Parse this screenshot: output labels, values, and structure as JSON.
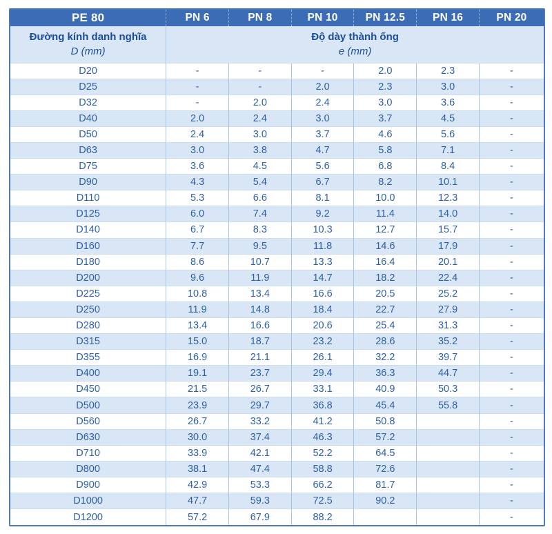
{
  "table": {
    "corner_title": "PE 80",
    "pn_headers": [
      "PN 6",
      "PN 8",
      "PN 10",
      "PN 12.5",
      "PN 16",
      "PN 20"
    ],
    "diameter_header": {
      "title": "Đường kính danh nghĩa",
      "unit": "D (mm)"
    },
    "thickness_header": {
      "title": "Độ dày thành ống",
      "unit": "e (mm)"
    },
    "rows": [
      {
        "d": "D20",
        "values": [
          "-",
          "-",
          "-",
          "2.0",
          "2.3",
          "-"
        ]
      },
      {
        "d": "D25",
        "values": [
          "-",
          "-",
          "2.0",
          "2.3",
          "3.0",
          "-"
        ]
      },
      {
        "d": "D32",
        "values": [
          "-",
          "2.0",
          "2.4",
          "3.0",
          "3.6",
          "-"
        ]
      },
      {
        "d": "D40",
        "values": [
          "2.0",
          "2.4",
          "3.0",
          "3.7",
          "4.5",
          "-"
        ]
      },
      {
        "d": "D50",
        "values": [
          "2.4",
          "3.0",
          "3.7",
          "4.6",
          "5.6",
          "-"
        ]
      },
      {
        "d": "D63",
        "values": [
          "3.0",
          "3.8",
          "4.7",
          "5.8",
          "7.1",
          "-"
        ]
      },
      {
        "d": "D75",
        "values": [
          "3.6",
          "4.5",
          "5.6",
          "6.8",
          "8.4",
          "-"
        ]
      },
      {
        "d": "D90",
        "values": [
          "4.3",
          "5.4",
          "6.7",
          "8.2",
          "10.1",
          "-"
        ]
      },
      {
        "d": "D110",
        "values": [
          "5.3",
          "6.6",
          "8.1",
          "10.0",
          "12.3",
          "-"
        ]
      },
      {
        "d": "D125",
        "values": [
          "6.0",
          "7.4",
          "9.2",
          "11.4",
          "14.0",
          "-"
        ]
      },
      {
        "d": "D140",
        "values": [
          "6.7",
          "8.3",
          "10.3",
          "12.7",
          "15.7",
          "-"
        ]
      },
      {
        "d": "D160",
        "values": [
          "7.7",
          "9.5",
          "11.8",
          "14.6",
          "17.9",
          "-"
        ]
      },
      {
        "d": "D180",
        "values": [
          "8.6",
          "10.7",
          "13.3",
          "16.4",
          "20.1",
          "-"
        ]
      },
      {
        "d": "D200",
        "values": [
          "9.6",
          "11.9",
          "14.7",
          "18.2",
          "22.4",
          "-"
        ]
      },
      {
        "d": "D225",
        "values": [
          "10.8",
          "13.4",
          "16.6",
          "20.5",
          "25.2",
          "-"
        ]
      },
      {
        "d": "D250",
        "values": [
          "11.9",
          "14.8",
          "18.4",
          "22.7",
          "27.9",
          "-"
        ]
      },
      {
        "d": "D280",
        "values": [
          "13.4",
          "16.6",
          "20.6",
          "25.4",
          "31.3",
          "-"
        ]
      },
      {
        "d": "D315",
        "values": [
          "15.0",
          "18.7",
          "23.2",
          "28.6",
          "35.2",
          "-"
        ]
      },
      {
        "d": "D355",
        "values": [
          "16.9",
          "21.1",
          "26.1",
          "32.2",
          "39.7",
          "-"
        ]
      },
      {
        "d": "D400",
        "values": [
          "19.1",
          "23.7",
          "29.4",
          "36.3",
          "44.7",
          "-"
        ]
      },
      {
        "d": "D450",
        "values": [
          "21.5",
          "26.7",
          "33.1",
          "40.9",
          "50.3",
          "-"
        ]
      },
      {
        "d": "D500",
        "values": [
          "23.9",
          "29.7",
          "36.8",
          "45.4",
          "55.8",
          "-"
        ]
      },
      {
        "d": "D560",
        "values": [
          "26.7",
          "33.2",
          "41.2",
          "50.8",
          "",
          "-"
        ]
      },
      {
        "d": "D630",
        "values": [
          "30.0",
          "37.4",
          "46.3",
          "57.2",
          "",
          "-"
        ]
      },
      {
        "d": "D710",
        "values": [
          "33.9",
          "42.1",
          "52.2",
          "64.5",
          "",
          "-"
        ]
      },
      {
        "d": "D800",
        "values": [
          "38.1",
          "47.4",
          "58.8",
          "72.6",
          "",
          "-"
        ]
      },
      {
        "d": "D900",
        "values": [
          "42.9",
          "53.3",
          "66.2",
          "81.7",
          "",
          "-"
        ]
      },
      {
        "d": "D1000",
        "values": [
          "47.7",
          "59.3",
          "72.5",
          "90.2",
          "",
          "-"
        ]
      },
      {
        "d": "D1200",
        "values": [
          "57.2",
          "67.9",
          "88.2",
          "",
          "",
          "-"
        ]
      }
    ]
  },
  "colors": {
    "header_bg": "#3d6cb6",
    "header_text": "#ffffff",
    "subheader_bg": "#d9e6f5",
    "alt_row_bg": "#d9e6f5",
    "row_bg": "#ffffff",
    "data_text": "#2e5fa9",
    "label_text": "#1c4c9c",
    "outer_border": "#4b79ba",
    "vertical_border": "#a9c4e2",
    "horizontal_border": "#ccdcef"
  }
}
